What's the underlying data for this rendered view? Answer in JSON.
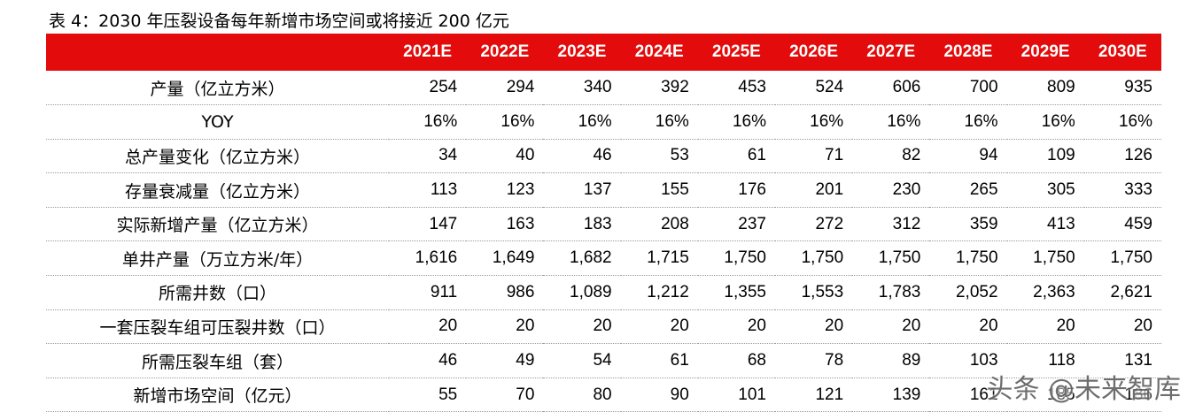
{
  "caption": "表 4：2030 年压裂设备每年新增市场空间或将接近 200 亿元",
  "header": [
    "",
    "2021E",
    "2022E",
    "2023E",
    "2024E",
    "2025E",
    "2026E",
    "2027E",
    "2028E",
    "2029E",
    "2030E"
  ],
  "rows": [
    {
      "label": "产量（亿立方米）",
      "values": [
        "254",
        "294",
        "340",
        "392",
        "453",
        "524",
        "606",
        "700",
        "809",
        "935"
      ]
    },
    {
      "label": "YOY",
      "values": [
        "16%",
        "16%",
        "16%",
        "16%",
        "16%",
        "16%",
        "16%",
        "16%",
        "16%",
        "16%"
      ]
    },
    {
      "label": "总产量变化（亿立方米）",
      "values": [
        "34",
        "40",
        "46",
        "53",
        "61",
        "71",
        "82",
        "94",
        "109",
        "126"
      ]
    },
    {
      "label": "存量衰减量（亿立方米）",
      "values": [
        "113",
        "123",
        "137",
        "155",
        "176",
        "201",
        "230",
        "265",
        "305",
        "333"
      ]
    },
    {
      "label": "实际新增产量（亿立方米）",
      "values": [
        "147",
        "163",
        "183",
        "208",
        "237",
        "272",
        "312",
        "359",
        "413",
        "459"
      ]
    },
    {
      "label": "单井产量（万立方米/年）",
      "values": [
        "1,616",
        "1,649",
        "1,682",
        "1,715",
        "1,750",
        "1,750",
        "1,750",
        "1,750",
        "1,750",
        "1,750"
      ]
    },
    {
      "label": "所需井数（口）",
      "values": [
        "911",
        "986",
        "1,089",
        "1,212",
        "1,355",
        "1,553",
        "1,783",
        "2,052",
        "2,363",
        "2,621"
      ]
    },
    {
      "label": "一套压裂车组可压裂井数（口）",
      "values": [
        "20",
        "20",
        "20",
        "20",
        "20",
        "20",
        "20",
        "20",
        "20",
        "20"
      ]
    },
    {
      "label": "所需压裂车组（套）",
      "values": [
        "46",
        "49",
        "54",
        "61",
        "68",
        "78",
        "89",
        "103",
        "118",
        "131"
      ]
    },
    {
      "label": "新增市场空间（亿元）",
      "values": [
        "55",
        "70",
        "80",
        "90",
        "101",
        "121",
        "139",
        "161",
        "185",
        "186"
      ]
    }
  ],
  "watermark": "头条 @未来智库",
  "colors": {
    "header_bg": "#e30b0b",
    "header_text": "#ffffff"
  }
}
